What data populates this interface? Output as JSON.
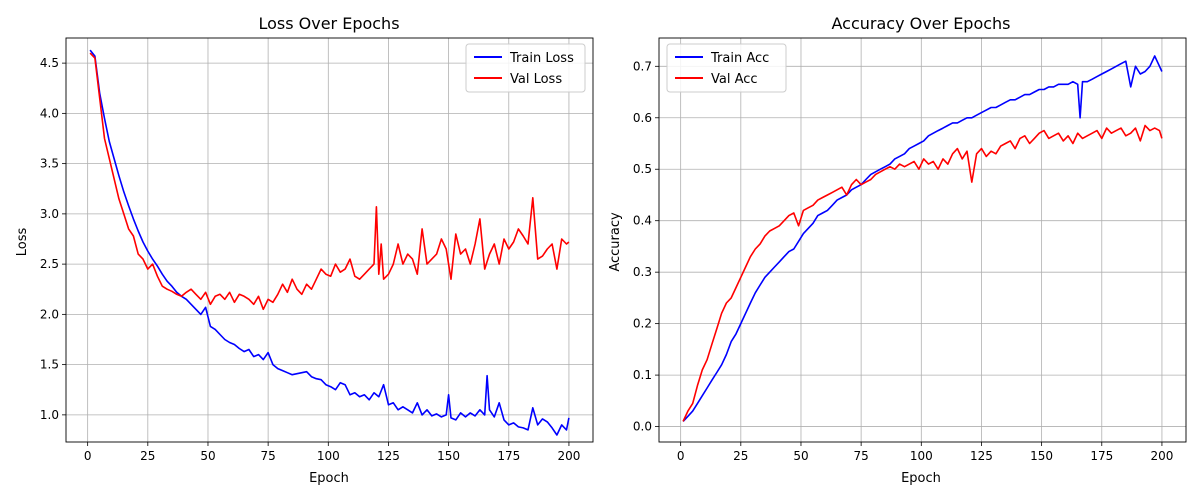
{
  "chart_data": [
    {
      "type": "line",
      "title": "Loss Over Epochs",
      "xlabel": "Epoch",
      "ylabel": "Loss",
      "xlim": [
        -9,
        210
      ],
      "ylim": [
        0.73,
        4.75
      ],
      "xticks": [
        0,
        25,
        50,
        75,
        100,
        125,
        150,
        175,
        200
      ],
      "yticks": [
        1.0,
        1.5,
        2.0,
        2.5,
        3.0,
        3.5,
        4.0,
        4.5
      ],
      "ytick_labels": [
        "1.0",
        "1.5",
        "2.0",
        "2.5",
        "3.0",
        "3.5",
        "4.0",
        "4.5"
      ],
      "grid": true,
      "legend": "top-right",
      "series": [
        {
          "name": "Train Loss",
          "color": "#0000ff",
          "x": [
            1,
            3,
            5,
            7,
            9,
            11,
            13,
            15,
            17,
            19,
            21,
            23,
            25,
            27,
            29,
            31,
            33,
            35,
            37,
            39,
            41,
            43,
            45,
            47,
            49,
            51,
            53,
            55,
            57,
            59,
            61,
            63,
            65,
            67,
            69,
            71,
            73,
            75,
            77,
            79,
            81,
            83,
            85,
            87,
            89,
            91,
            93,
            95,
            97,
            99,
            101,
            103,
            105,
            107,
            109,
            111,
            113,
            115,
            117,
            119,
            121,
            123,
            125,
            127,
            129,
            131,
            133,
            135,
            137,
            139,
            141,
            143,
            145,
            147,
            149,
            150,
            151,
            153,
            155,
            157,
            159,
            161,
            163,
            165,
            166,
            167,
            169,
            171,
            173,
            175,
            177,
            179,
            181,
            183,
            185,
            187,
            189,
            191,
            193,
            195,
            197,
            199,
            200
          ],
          "y": [
            4.63,
            4.57,
            4.2,
            3.95,
            3.72,
            3.55,
            3.38,
            3.22,
            3.08,
            2.95,
            2.83,
            2.72,
            2.63,
            2.55,
            2.48,
            2.4,
            2.33,
            2.28,
            2.22,
            2.18,
            2.15,
            2.1,
            2.05,
            2.0,
            2.07,
            1.88,
            1.85,
            1.8,
            1.75,
            1.72,
            1.7,
            1.66,
            1.63,
            1.65,
            1.58,
            1.6,
            1.55,
            1.62,
            1.5,
            1.46,
            1.44,
            1.42,
            1.4,
            1.41,
            1.42,
            1.43,
            1.38,
            1.36,
            1.35,
            1.3,
            1.28,
            1.25,
            1.32,
            1.3,
            1.2,
            1.22,
            1.18,
            1.2,
            1.15,
            1.22,
            1.18,
            1.3,
            1.1,
            1.12,
            1.05,
            1.08,
            1.05,
            1.02,
            1.12,
            1.0,
            1.05,
            0.99,
            1.01,
            0.98,
            1.0,
            1.2,
            0.97,
            0.95,
            1.02,
            0.98,
            1.02,
            0.99,
            1.05,
            1.0,
            1.39,
            1.05,
            0.98,
            1.12,
            0.95,
            0.9,
            0.92,
            0.88,
            0.87,
            0.85,
            1.07,
            0.9,
            0.96,
            0.93,
            0.87,
            0.8,
            0.9,
            0.85,
            0.97
          ]
        },
        {
          "name": "Val Loss",
          "color": "#ff0000",
          "x": [
            1,
            3,
            5,
            7,
            9,
            11,
            13,
            15,
            17,
            19,
            21,
            23,
            25,
            27,
            29,
            31,
            33,
            35,
            37,
            39,
            41,
            43,
            45,
            47,
            49,
            51,
            53,
            55,
            57,
            59,
            61,
            63,
            65,
            67,
            69,
            71,
            73,
            75,
            77,
            79,
            81,
            83,
            85,
            87,
            89,
            91,
            93,
            95,
            97,
            99,
            101,
            103,
            105,
            107,
            109,
            111,
            113,
            115,
            117,
            119,
            120,
            121,
            122,
            123,
            125,
            127,
            129,
            131,
            133,
            135,
            137,
            139,
            141,
            143,
            145,
            147,
            149,
            151,
            153,
            155,
            157,
            159,
            161,
            163,
            165,
            167,
            169,
            171,
            173,
            175,
            177,
            179,
            181,
            183,
            185,
            187,
            189,
            191,
            193,
            195,
            197,
            199,
            200
          ],
          "y": [
            4.6,
            4.55,
            4.15,
            3.75,
            3.55,
            3.35,
            3.15,
            3.0,
            2.85,
            2.78,
            2.6,
            2.55,
            2.45,
            2.5,
            2.38,
            2.28,
            2.25,
            2.23,
            2.2,
            2.18,
            2.22,
            2.25,
            2.2,
            2.15,
            2.22,
            2.1,
            2.18,
            2.2,
            2.15,
            2.22,
            2.12,
            2.2,
            2.18,
            2.15,
            2.1,
            2.18,
            2.05,
            2.15,
            2.12,
            2.2,
            2.3,
            2.22,
            2.35,
            2.25,
            2.2,
            2.3,
            2.25,
            2.35,
            2.45,
            2.4,
            2.38,
            2.5,
            2.42,
            2.45,
            2.55,
            2.38,
            2.35,
            2.4,
            2.45,
            2.5,
            3.07,
            2.4,
            2.7,
            2.35,
            2.4,
            2.5,
            2.7,
            2.5,
            2.6,
            2.55,
            2.4,
            2.85,
            2.5,
            2.55,
            2.6,
            2.75,
            2.65,
            2.35,
            2.8,
            2.6,
            2.65,
            2.5,
            2.7,
            2.95,
            2.45,
            2.6,
            2.7,
            2.5,
            2.75,
            2.65,
            2.72,
            2.85,
            2.78,
            2.7,
            3.16,
            2.55,
            2.58,
            2.65,
            2.7,
            2.45,
            2.75,
            2.7,
            2.72
          ]
        }
      ]
    },
    {
      "type": "line",
      "title": "Accuracy Over Epochs",
      "xlabel": "Epoch",
      "ylabel": "Accuracy",
      "xlim": [
        -9,
        210
      ],
      "ylim": [
        -0.03,
        0.755
      ],
      "xticks": [
        0,
        25,
        50,
        75,
        100,
        125,
        150,
        175,
        200
      ],
      "yticks": [
        0.0,
        0.1,
        0.2,
        0.3,
        0.4,
        0.5,
        0.6,
        0.7
      ],
      "ytick_labels": [
        "0.0",
        "0.1",
        "0.2",
        "0.3",
        "0.4",
        "0.5",
        "0.6",
        "0.7"
      ],
      "grid": true,
      "legend": "top-left",
      "series": [
        {
          "name": "Train Acc",
          "color": "#0000ff",
          "x": [
            1,
            3,
            5,
            7,
            9,
            11,
            13,
            15,
            17,
            19,
            21,
            23,
            25,
            27,
            29,
            31,
            33,
            35,
            37,
            39,
            41,
            43,
            45,
            47,
            49,
            51,
            53,
            55,
            57,
            59,
            61,
            63,
            65,
            67,
            69,
            71,
            73,
            75,
            77,
            79,
            81,
            83,
            85,
            87,
            89,
            91,
            93,
            95,
            97,
            99,
            101,
            103,
            105,
            107,
            109,
            111,
            113,
            115,
            117,
            119,
            121,
            123,
            125,
            127,
            129,
            131,
            133,
            135,
            137,
            139,
            141,
            143,
            145,
            147,
            149,
            151,
            153,
            155,
            157,
            159,
            161,
            163,
            165,
            166,
            167,
            169,
            171,
            173,
            175,
            177,
            179,
            181,
            183,
            185,
            187,
            189,
            191,
            193,
            195,
            197,
            199,
            200
          ],
          "y": [
            0.01,
            0.02,
            0.03,
            0.045,
            0.06,
            0.075,
            0.09,
            0.105,
            0.12,
            0.14,
            0.165,
            0.18,
            0.2,
            0.22,
            0.24,
            0.26,
            0.275,
            0.29,
            0.3,
            0.31,
            0.32,
            0.33,
            0.34,
            0.345,
            0.36,
            0.375,
            0.385,
            0.395,
            0.41,
            0.415,
            0.42,
            0.43,
            0.44,
            0.445,
            0.45,
            0.46,
            0.465,
            0.47,
            0.48,
            0.49,
            0.495,
            0.5,
            0.505,
            0.51,
            0.52,
            0.525,
            0.53,
            0.54,
            0.545,
            0.55,
            0.555,
            0.565,
            0.57,
            0.575,
            0.58,
            0.585,
            0.59,
            0.59,
            0.595,
            0.6,
            0.6,
            0.605,
            0.61,
            0.615,
            0.62,
            0.62,
            0.625,
            0.63,
            0.635,
            0.635,
            0.64,
            0.645,
            0.645,
            0.65,
            0.655,
            0.655,
            0.66,
            0.66,
            0.665,
            0.665,
            0.665,
            0.67,
            0.665,
            0.6,
            0.67,
            0.67,
            0.675,
            0.68,
            0.685,
            0.69,
            0.695,
            0.7,
            0.705,
            0.71,
            0.66,
            0.7,
            0.685,
            0.69,
            0.7,
            0.72,
            0.7,
            0.69
          ]
        },
        {
          "name": "Val Acc",
          "color": "#ff0000",
          "x": [
            1,
            3,
            5,
            7,
            9,
            11,
            13,
            15,
            17,
            19,
            21,
            23,
            25,
            27,
            29,
            31,
            33,
            35,
            37,
            39,
            41,
            43,
            45,
            47,
            49,
            51,
            53,
            55,
            57,
            59,
            61,
            63,
            65,
            67,
            69,
            71,
            73,
            75,
            77,
            79,
            81,
            83,
            85,
            87,
            89,
            91,
            93,
            95,
            97,
            99,
            101,
            103,
            105,
            107,
            109,
            111,
            113,
            115,
            117,
            119,
            121,
            123,
            125,
            127,
            129,
            131,
            133,
            135,
            137,
            139,
            141,
            143,
            145,
            147,
            149,
            151,
            153,
            155,
            157,
            159,
            161,
            163,
            165,
            167,
            169,
            171,
            173,
            175,
            177,
            179,
            181,
            183,
            185,
            187,
            189,
            191,
            193,
            195,
            197,
            199,
            200
          ],
          "y": [
            0.01,
            0.03,
            0.045,
            0.08,
            0.11,
            0.13,
            0.16,
            0.19,
            0.22,
            0.24,
            0.25,
            0.27,
            0.29,
            0.31,
            0.33,
            0.345,
            0.355,
            0.37,
            0.38,
            0.385,
            0.39,
            0.4,
            0.41,
            0.415,
            0.39,
            0.42,
            0.425,
            0.43,
            0.44,
            0.445,
            0.45,
            0.455,
            0.46,
            0.465,
            0.45,
            0.47,
            0.48,
            0.47,
            0.475,
            0.48,
            0.49,
            0.495,
            0.5,
            0.505,
            0.5,
            0.51,
            0.505,
            0.51,
            0.515,
            0.5,
            0.52,
            0.51,
            0.515,
            0.5,
            0.52,
            0.51,
            0.53,
            0.54,
            0.52,
            0.535,
            0.475,
            0.53,
            0.54,
            0.525,
            0.535,
            0.53,
            0.545,
            0.55,
            0.555,
            0.54,
            0.56,
            0.565,
            0.55,
            0.56,
            0.57,
            0.575,
            0.56,
            0.565,
            0.57,
            0.555,
            0.565,
            0.55,
            0.57,
            0.56,
            0.565,
            0.57,
            0.575,
            0.56,
            0.58,
            0.57,
            0.575,
            0.58,
            0.565,
            0.57,
            0.58,
            0.555,
            0.585,
            0.575,
            0.58,
            0.575,
            0.56
          ]
        }
      ]
    }
  ]
}
